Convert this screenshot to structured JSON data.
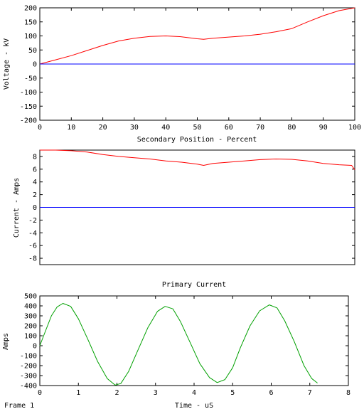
{
  "frame_label": "Frame 1",
  "colors": {
    "red": "#ff0000",
    "blue": "#0000ff",
    "green": "#00a000",
    "axis": "#000000"
  },
  "chart_data": [
    {
      "type": "line",
      "title": "",
      "xlabel": "Secondary Position - Percent",
      "ylabel": "Voltage - kV",
      "xlim": [
        0,
        100
      ],
      "ylim": [
        -200,
        200
      ],
      "xticks": [
        0,
        10,
        20,
        30,
        40,
        50,
        60,
        70,
        80,
        90,
        100
      ],
      "yticks": [
        -200,
        -150,
        -100,
        -50,
        0,
        50,
        100,
        150,
        200
      ],
      "grid": false,
      "series": [
        {
          "color": "#ff0000",
          "x": [
            0,
            5,
            10,
            15,
            20,
            25,
            30,
            35,
            40,
            45,
            50,
            52,
            55,
            60,
            65,
            70,
            75,
            80,
            85,
            90,
            95,
            100
          ],
          "y": [
            0,
            15,
            30,
            48,
            66,
            82,
            92,
            98,
            100,
            97,
            90,
            88,
            92,
            96,
            100,
            106,
            115,
            126,
            150,
            172,
            190,
            200
          ]
        },
        {
          "color": "#0000ff",
          "x": [
            0,
            100
          ],
          "y": [
            0,
            0
          ]
        }
      ]
    },
    {
      "type": "line",
      "title": "",
      "xlabel": "",
      "ylabel": "Current - Amps",
      "xlim": [
        0,
        100
      ],
      "ylim": [
        -9,
        9
      ],
      "xticks": [],
      "yticks": [
        -8,
        -6,
        -4,
        -2,
        0,
        2,
        4,
        6,
        8
      ],
      "grid": false,
      "series": [
        {
          "color": "#ff0000",
          "x": [
            0,
            5,
            10,
            15,
            20,
            25,
            30,
            35,
            40,
            45,
            50,
            52,
            55,
            60,
            65,
            70,
            75,
            80,
            85,
            90,
            95,
            99,
            100
          ],
          "y": [
            9,
            9,
            8.9,
            8.7,
            8.3,
            8.0,
            7.8,
            7.6,
            7.3,
            7.1,
            6.8,
            6.6,
            6.9,
            7.1,
            7.3,
            7.5,
            7.6,
            7.55,
            7.3,
            6.9,
            6.7,
            6.6,
            5.9
          ]
        },
        {
          "color": "#0000ff",
          "x": [
            0,
            100
          ],
          "y": [
            0,
            0
          ]
        }
      ]
    },
    {
      "type": "line",
      "title": "Primary Current",
      "xlabel": "Time - uS",
      "ylabel": "Amps",
      "xlim": [
        0,
        8
      ],
      "ylim": [
        -400,
        500
      ],
      "xticks": [
        0,
        1,
        2,
        3,
        4,
        5,
        6,
        7,
        8
      ],
      "yticks": [
        -400,
        -300,
        -200,
        -100,
        0,
        100,
        200,
        300,
        400,
        500
      ],
      "grid": false,
      "series": [
        {
          "color": "#00a000",
          "x": [
            0,
            0.15,
            0.3,
            0.45,
            0.6,
            0.8,
            1.0,
            1.25,
            1.5,
            1.75,
            1.95,
            2.1,
            2.3,
            2.55,
            2.8,
            3.05,
            3.25,
            3.45,
            3.65,
            3.9,
            4.15,
            4.4,
            4.6,
            4.8,
            5.0,
            5.2,
            5.45,
            5.7,
            5.95,
            6.15,
            6.35,
            6.6,
            6.85,
            7.05,
            7.2
          ],
          "y": [
            0,
            150,
            300,
            390,
            425,
            395,
            270,
            60,
            -160,
            -330,
            -395,
            -380,
            -260,
            -40,
            180,
            345,
            395,
            370,
            240,
            30,
            -180,
            -320,
            -370,
            -340,
            -220,
            -20,
            200,
            350,
            410,
            380,
            250,
            40,
            -200,
            -330,
            -375
          ]
        }
      ]
    }
  ]
}
